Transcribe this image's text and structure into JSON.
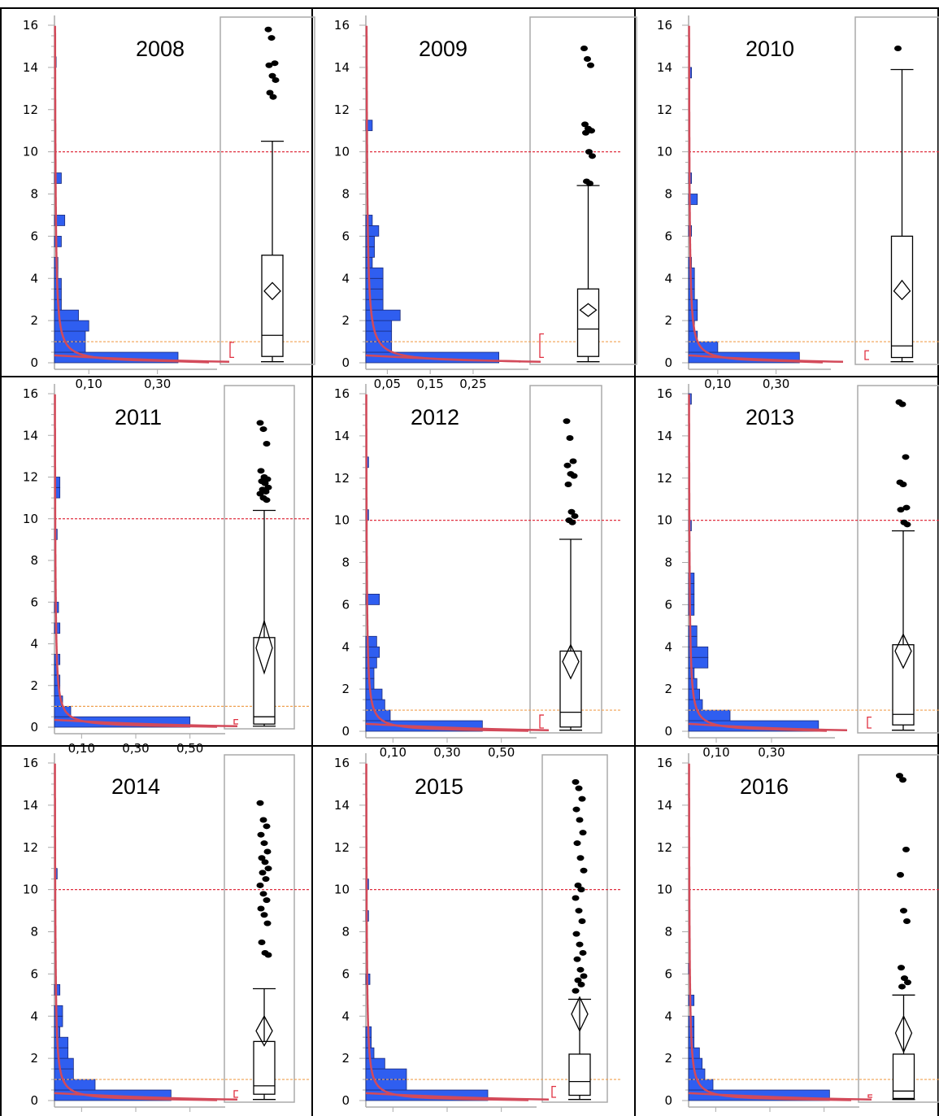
{
  "page_title": "",
  "colors": {
    "bar_fill": "#2f5ef0",
    "bar_stroke": "#1a2a7a",
    "fit_curve": "#d34a5a",
    "ref_10": "#e03040",
    "ref_1": "#f0a050",
    "box_stroke": "#000000",
    "frame": "#aaaaaa",
    "bracket": "#e03040"
  },
  "chart_data": [
    {
      "type": "histogram+boxplot",
      "title": "2008",
      "y_ticks": [
        "0",
        "2",
        "4",
        "6",
        "8",
        "10",
        "12",
        "14",
        "16"
      ],
      "x_tick_labels": [
        "0,10",
        "0,30"
      ],
      "x_tick_values": [
        0.1,
        0.3
      ],
      "xlim": [
        0,
        0.45
      ],
      "ylim": [
        0,
        16
      ],
      "reference_lines": [
        10,
        1
      ],
      "histogram": [
        {
          "y0": 0.0,
          "y1": 0.5,
          "freq": 0.36
        },
        {
          "y0": 0.5,
          "y1": 1.0,
          "freq": 0.09
        },
        {
          "y0": 1.0,
          "y1": 1.5,
          "freq": 0.09
        },
        {
          "y0": 1.5,
          "y1": 2.0,
          "freq": 0.1
        },
        {
          "y0": 2.0,
          "y1": 2.5,
          "freq": 0.07
        },
        {
          "y0": 2.5,
          "y1": 3.0,
          "freq": 0.02
        },
        {
          "y0": 3.0,
          "y1": 3.5,
          "freq": 0.02
        },
        {
          "y0": 3.5,
          "y1": 4.0,
          "freq": 0.02
        },
        {
          "y0": 4.0,
          "y1": 4.5,
          "freq": 0.01
        },
        {
          "y0": 4.5,
          "y1": 5.0,
          "freq": 0.01
        },
        {
          "y0": 5.5,
          "y1": 6.0,
          "freq": 0.02
        },
        {
          "y0": 6.5,
          "y1": 7.0,
          "freq": 0.03
        },
        {
          "y0": 8.5,
          "y1": 9.0,
          "freq": 0.02
        },
        {
          "y0": 14.0,
          "y1": 14.5,
          "freq": 0.005
        }
      ],
      "box": {
        "min": 0.05,
        "q1": 0.3,
        "median": 1.3,
        "q3": 5.1,
        "upper_whisker": 10.5,
        "mean": 3.4,
        "mean_ci": [
          3.0,
          3.8
        ],
        "shortest_half": [
          0.1,
          1.2
        ]
      },
      "outliers": [
        15.8,
        15.4,
        14.2,
        14.1,
        13.6,
        13.4,
        12.8,
        12.6
      ]
    },
    {
      "type": "histogram+boxplot",
      "title": "2009",
      "y_ticks": [
        "0",
        "2",
        "4",
        "6",
        "8",
        "10",
        "12",
        "14",
        "16"
      ],
      "x_tick_labels": [
        "0,05",
        "0,15",
        "0,25"
      ],
      "x_tick_values": [
        0.05,
        0.15,
        0.25
      ],
      "xlim": [
        0,
        0.36
      ],
      "ylim": [
        0,
        16
      ],
      "reference_lines": [
        10,
        1
      ],
      "histogram": [
        {
          "y0": 0.0,
          "y1": 0.5,
          "freq": 0.31
        },
        {
          "y0": 0.5,
          "y1": 1.0,
          "freq": 0.06
        },
        {
          "y0": 1.0,
          "y1": 1.5,
          "freq": 0.06
        },
        {
          "y0": 1.5,
          "y1": 2.0,
          "freq": 0.06
        },
        {
          "y0": 2.0,
          "y1": 2.5,
          "freq": 0.08
        },
        {
          "y0": 2.5,
          "y1": 3.0,
          "freq": 0.04
        },
        {
          "y0": 3.0,
          "y1": 3.5,
          "freq": 0.04
        },
        {
          "y0": 3.5,
          "y1": 4.0,
          "freq": 0.04
        },
        {
          "y0": 4.0,
          "y1": 4.5,
          "freq": 0.04
        },
        {
          "y0": 4.5,
          "y1": 5.0,
          "freq": 0.015
        },
        {
          "y0": 5.0,
          "y1": 5.5,
          "freq": 0.02
        },
        {
          "y0": 5.5,
          "y1": 6.0,
          "freq": 0.02
        },
        {
          "y0": 6.0,
          "y1": 6.5,
          "freq": 0.03
        },
        {
          "y0": 6.5,
          "y1": 7.0,
          "freq": 0.015
        },
        {
          "y0": 11.0,
          "y1": 11.5,
          "freq": 0.015
        }
      ],
      "box": {
        "min": 0.05,
        "q1": 0.3,
        "median": 1.6,
        "q3": 3.5,
        "upper_whisker": 8.4,
        "mean": 2.5,
        "mean_ci": [
          2.2,
          2.8
        ],
        "shortest_half": [
          0.1,
          1.6
        ]
      },
      "outliers": [
        14.9,
        14.4,
        14.1,
        11.3,
        11.1,
        11.0,
        10.9,
        10.0,
        9.8,
        8.6,
        8.5
      ]
    },
    {
      "type": "histogram+boxplot",
      "title": "2010",
      "y_ticks": [
        "0",
        "2",
        "4",
        "6",
        "8",
        "10",
        "12",
        "14",
        "16"
      ],
      "x_tick_labels": [
        "0,10",
        "0,30"
      ],
      "x_tick_values": [
        0.1,
        0.3
      ],
      "xlim": [
        0,
        0.46
      ],
      "ylim": [
        0,
        16
      ],
      "reference_lines": [
        10,
        1
      ],
      "histogram": [
        {
          "y0": 0.0,
          "y1": 0.5,
          "freq": 0.38
        },
        {
          "y0": 0.5,
          "y1": 1.0,
          "freq": 0.1
        },
        {
          "y0": 1.0,
          "y1": 1.5,
          "freq": 0.03
        },
        {
          "y0": 1.5,
          "y1": 2.0,
          "freq": 0.02
        },
        {
          "y0": 2.0,
          "y1": 2.5,
          "freq": 0.03
        },
        {
          "y0": 2.5,
          "y1": 3.0,
          "freq": 0.03
        },
        {
          "y0": 3.0,
          "y1": 3.5,
          "freq": 0.02
        },
        {
          "y0": 3.5,
          "y1": 4.0,
          "freq": 0.02
        },
        {
          "y0": 4.0,
          "y1": 4.5,
          "freq": 0.02
        },
        {
          "y0": 4.5,
          "y1": 5.0,
          "freq": 0.01
        },
        {
          "y0": 6.0,
          "y1": 6.5,
          "freq": 0.01
        },
        {
          "y0": 7.5,
          "y1": 8.0,
          "freq": 0.03
        },
        {
          "y0": 8.5,
          "y1": 9.0,
          "freq": 0.01
        },
        {
          "y0": 13.5,
          "y1": 14.0,
          "freq": 0.01
        }
      ],
      "box": {
        "min": 0.05,
        "q1": 0.25,
        "median": 0.8,
        "q3": 6.0,
        "upper_whisker": 13.9,
        "mean": 3.4,
        "mean_ci": [
          3.0,
          3.9
        ],
        "shortest_half": [
          0.0,
          0.8
        ]
      },
      "outliers": [
        14.9
      ]
    },
    {
      "type": "histogram+boxplot",
      "title": "2011",
      "y_ticks": [
        "0",
        "2",
        "4",
        "6",
        "8",
        "10",
        "12",
        "14",
        "16"
      ],
      "x_tick_labels": [
        "0,10",
        "0,30",
        "0,50"
      ],
      "x_tick_values": [
        0.1,
        0.3,
        0.5
      ],
      "xlim": [
        0,
        0.6
      ],
      "ylim": [
        0,
        16
      ],
      "reference_lines": [
        10,
        1
      ],
      "histogram": [
        {
          "y0": 0.0,
          "y1": 0.5,
          "freq": 0.5
        },
        {
          "y0": 0.5,
          "y1": 1.0,
          "freq": 0.06
        },
        {
          "y0": 1.0,
          "y1": 1.5,
          "freq": 0.03
        },
        {
          "y0": 1.5,
          "y1": 2.0,
          "freq": 0.02
        },
        {
          "y0": 2.0,
          "y1": 2.5,
          "freq": 0.02
        },
        {
          "y0": 2.5,
          "y1": 3.0,
          "freq": 0.01
        },
        {
          "y0": 3.0,
          "y1": 3.5,
          "freq": 0.02
        },
        {
          "y0": 4.5,
          "y1": 5.0,
          "freq": 0.02
        },
        {
          "y0": 5.5,
          "y1": 6.0,
          "freq": 0.015
        },
        {
          "y0": 9.0,
          "y1": 9.5,
          "freq": 0.01
        },
        {
          "y0": 11.0,
          "y1": 11.5,
          "freq": 0.02
        },
        {
          "y0": 11.5,
          "y1": 12.0,
          "freq": 0.02
        }
      ],
      "box": {
        "min": 0.05,
        "q1": 0.15,
        "median": 0.5,
        "q3": 4.3,
        "upper_whisker": 10.4,
        "mean": 3.8,
        "mean_ci": [
          2.6,
          5.1
        ],
        "shortest_half": [
          0.0,
          0.6
        ]
      },
      "outliers": [
        14.6,
        14.3,
        13.6,
        12.3,
        12.0,
        11.9,
        11.8,
        11.7,
        11.5,
        11.4,
        11.3,
        11.2,
        11.0,
        10.9
      ]
    },
    {
      "type": "histogram+boxplot",
      "title": "2012",
      "y_ticks": [
        "0",
        "2",
        "4",
        "6",
        "8",
        "10",
        "12",
        "14",
        "16"
      ],
      "x_tick_labels": [
        "0,10",
        "0,30",
        "0,50"
      ],
      "x_tick_values": [
        0.1,
        0.3,
        0.5
      ],
      "xlim": [
        0,
        0.6
      ],
      "ylim": [
        0,
        16
      ],
      "reference_lines": [
        10,
        1
      ],
      "histogram": [
        {
          "y0": 0.0,
          "y1": 0.5,
          "freq": 0.43
        },
        {
          "y0": 0.5,
          "y1": 1.0,
          "freq": 0.09
        },
        {
          "y0": 1.0,
          "y1": 1.5,
          "freq": 0.07
        },
        {
          "y0": 1.5,
          "y1": 2.0,
          "freq": 0.06
        },
        {
          "y0": 2.0,
          "y1": 2.5,
          "freq": 0.03
        },
        {
          "y0": 2.5,
          "y1": 3.0,
          "freq": 0.03
        },
        {
          "y0": 3.0,
          "y1": 3.5,
          "freq": 0.04
        },
        {
          "y0": 3.5,
          "y1": 4.0,
          "freq": 0.05
        },
        {
          "y0": 4.0,
          "y1": 4.5,
          "freq": 0.04
        },
        {
          "y0": 6.0,
          "y1": 6.5,
          "freq": 0.05
        },
        {
          "y0": 10.0,
          "y1": 10.5,
          "freq": 0.01
        },
        {
          "y0": 12.5,
          "y1": 13.0,
          "freq": 0.01
        }
      ],
      "box": {
        "min": 0.05,
        "q1": 0.2,
        "median": 0.9,
        "q3": 3.8,
        "upper_whisker": 9.1,
        "mean": 3.3,
        "mean_ci": [
          2.5,
          4.1
        ],
        "shortest_half": [
          0.0,
          1.0
        ]
      },
      "outliers": [
        14.7,
        13.9,
        12.8,
        12.6,
        12.2,
        12.1,
        11.7,
        10.4,
        10.2,
        10.0,
        9.9
      ]
    },
    {
      "type": "histogram+boxplot",
      "title": "2013",
      "y_ticks": [
        "0",
        "2",
        "4",
        "6",
        "8",
        "10",
        "12",
        "14",
        "16"
      ],
      "x_tick_labels": [
        "0,10",
        "0,30"
      ],
      "x_tick_values": [
        0.1,
        0.3
      ],
      "xlim": [
        0,
        0.5
      ],
      "ylim": [
        0,
        16
      ],
      "reference_lines": [
        10,
        1
      ],
      "histogram": [
        {
          "y0": 0.0,
          "y1": 0.5,
          "freq": 0.47
        },
        {
          "y0": 0.5,
          "y1": 1.0,
          "freq": 0.15
        },
        {
          "y0": 1.0,
          "y1": 1.5,
          "freq": 0.05
        },
        {
          "y0": 1.5,
          "y1": 2.0,
          "freq": 0.04
        },
        {
          "y0": 2.0,
          "y1": 2.5,
          "freq": 0.03
        },
        {
          "y0": 2.5,
          "y1": 3.0,
          "freq": 0.02
        },
        {
          "y0": 3.0,
          "y1": 3.5,
          "freq": 0.07
        },
        {
          "y0": 3.5,
          "y1": 4.0,
          "freq": 0.07
        },
        {
          "y0": 4.0,
          "y1": 4.5,
          "freq": 0.03
        },
        {
          "y0": 4.5,
          "y1": 5.0,
          "freq": 0.03
        },
        {
          "y0": 5.5,
          "y1": 6.0,
          "freq": 0.02
        },
        {
          "y0": 6.0,
          "y1": 6.5,
          "freq": 0.02
        },
        {
          "y0": 6.5,
          "y1": 7.0,
          "freq": 0.02
        },
        {
          "y0": 7.0,
          "y1": 7.5,
          "freq": 0.02
        },
        {
          "y0": 9.5,
          "y1": 10.0,
          "freq": 0.01
        },
        {
          "y0": 15.5,
          "y1": 16.0,
          "freq": 0.01
        }
      ],
      "box": {
        "min": 0.05,
        "q1": 0.3,
        "median": 0.8,
        "q3": 4.1,
        "upper_whisker": 9.5,
        "mean": 3.8,
        "mean_ci": [
          3.0,
          4.6
        ],
        "shortest_half": [
          0.0,
          0.9
        ]
      },
      "outliers": [
        15.6,
        15.5,
        13.0,
        11.8,
        11.7,
        10.6,
        10.5,
        9.9,
        9.8
      ]
    },
    {
      "type": "histogram+boxplot",
      "title": "2014",
      "y_ticks": [
        "0",
        "2",
        "4",
        "6",
        "8",
        "10",
        "12",
        "14",
        "16"
      ],
      "x_tick_labels": [
        "0,10",
        "0,30",
        "0,50"
      ],
      "x_tick_values": [
        0.1,
        0.3,
        0.5
      ],
      "xlim": [
        0,
        0.6
      ],
      "ylim": [
        0,
        16
      ],
      "reference_lines": [
        10,
        1
      ],
      "histogram": [
        {
          "y0": 0.0,
          "y1": 0.5,
          "freq": 0.43
        },
        {
          "y0": 0.5,
          "y1": 1.0,
          "freq": 0.15
        },
        {
          "y0": 1.0,
          "y1": 1.5,
          "freq": 0.07
        },
        {
          "y0": 1.5,
          "y1": 2.0,
          "freq": 0.07
        },
        {
          "y0": 2.0,
          "y1": 2.5,
          "freq": 0.05
        },
        {
          "y0": 2.5,
          "y1": 3.0,
          "freq": 0.05
        },
        {
          "y0": 3.0,
          "y1": 3.5,
          "freq": 0.02
        },
        {
          "y0": 3.5,
          "y1": 4.0,
          "freq": 0.03
        },
        {
          "y0": 4.0,
          "y1": 4.5,
          "freq": 0.03
        },
        {
          "y0": 5.0,
          "y1": 5.5,
          "freq": 0.02
        },
        {
          "y0": 10.5,
          "y1": 11.0,
          "freq": 0.01
        }
      ],
      "box": {
        "min": 0.05,
        "q1": 0.3,
        "median": 0.7,
        "q3": 2.8,
        "upper_whisker": 5.3,
        "mean": 3.3,
        "mean_ci": [
          2.6,
          4.0
        ],
        "shortest_half": [
          0.0,
          0.7
        ]
      },
      "outliers": [
        14.1,
        13.3,
        13.0,
        12.6,
        12.2,
        11.8,
        11.5,
        11.3,
        11.0,
        10.8,
        10.5,
        10.2,
        9.8,
        9.5,
        9.1,
        8.8,
        8.4,
        7.5,
        7.0,
        6.9
      ]
    },
    {
      "type": "histogram+boxplot",
      "title": "2015",
      "y_ticks": [
        "0",
        "2",
        "4",
        "6",
        "8",
        "10",
        "12",
        "14",
        "16"
      ],
      "x_tick_labels": [
        "0,10",
        "0,30",
        "0,50"
      ],
      "x_tick_values": [
        0.1,
        0.3,
        0.5
      ],
      "xlim": [
        0,
        0.6
      ],
      "ylim": [
        0,
        16
      ],
      "reference_lines": [
        10,
        1
      ],
      "histogram": [
        {
          "y0": 0.0,
          "y1": 0.5,
          "freq": 0.45
        },
        {
          "y0": 0.5,
          "y1": 1.0,
          "freq": 0.15
        },
        {
          "y0": 1.0,
          "y1": 1.5,
          "freq": 0.15
        },
        {
          "y0": 1.5,
          "y1": 2.0,
          "freq": 0.07
        },
        {
          "y0": 2.0,
          "y1": 2.5,
          "freq": 0.03
        },
        {
          "y0": 2.5,
          "y1": 3.0,
          "freq": 0.02
        },
        {
          "y0": 3.0,
          "y1": 3.5,
          "freq": 0.02
        },
        {
          "y0": 5.5,
          "y1": 6.0,
          "freq": 0.015
        },
        {
          "y0": 8.5,
          "y1": 9.0,
          "freq": 0.01
        },
        {
          "y0": 10.0,
          "y1": 10.5,
          "freq": 0.01
        }
      ],
      "box": {
        "min": 0.05,
        "q1": 0.25,
        "median": 0.9,
        "q3": 2.2,
        "upper_whisker": 4.8,
        "mean": 4.1,
        "mean_ci": [
          3.3,
          4.9
        ],
        "shortest_half": [
          0.0,
          0.9
        ]
      },
      "outliers": [
        15.1,
        14.8,
        14.3,
        13.8,
        13.3,
        12.7,
        12.2,
        11.5,
        10.9,
        10.2,
        10.0,
        9.6,
        9.0,
        8.5,
        7.9,
        7.4,
        7.0,
        6.7,
        6.2,
        5.9,
        5.7,
        5.5,
        5.2
      ]
    },
    {
      "type": "histogram+boxplot",
      "title": "2016",
      "y_ticks": [
        "0",
        "2",
        "4",
        "6",
        "8",
        "10",
        "12",
        "14",
        "16"
      ],
      "x_tick_labels": [
        "0,10",
        "0,30",
        "0,50"
      ],
      "x_tick_values": [
        0.1,
        0.3,
        0.5
      ],
      "xlim": [
        0,
        0.6
      ],
      "ylim": [
        0,
        16
      ],
      "reference_lines": [
        10,
        1
      ],
      "histogram": [
        {
          "y0": 0.0,
          "y1": 0.5,
          "freq": 0.52
        },
        {
          "y0": 0.5,
          "y1": 1.0,
          "freq": 0.09
        },
        {
          "y0": 1.0,
          "y1": 1.5,
          "freq": 0.06
        },
        {
          "y0": 1.5,
          "y1": 2.0,
          "freq": 0.05
        },
        {
          "y0": 2.0,
          "y1": 2.5,
          "freq": 0.04
        },
        {
          "y0": 2.5,
          "y1": 3.0,
          "freq": 0.02
        },
        {
          "y0": 3.0,
          "y1": 3.5,
          "freq": 0.02
        },
        {
          "y0": 3.5,
          "y1": 4.0,
          "freq": 0.02
        },
        {
          "y0": 4.5,
          "y1": 5.0,
          "freq": 0.02
        },
        {
          "y0": 6.0,
          "y1": 6.5,
          "freq": 0.005
        }
      ],
      "box": {
        "min": 0.05,
        "q1": 0.1,
        "median": 0.45,
        "q3": 2.2,
        "upper_whisker": 5.0,
        "mean": 3.2,
        "mean_ci": [
          2.3,
          4.0
        ],
        "shortest_half": [
          0.0,
          0.5
        ]
      },
      "outliers": [
        15.4,
        15.2,
        11.9,
        10.7,
        9.0,
        8.5,
        6.3,
        5.8,
        5.6,
        5.4
      ]
    }
  ]
}
